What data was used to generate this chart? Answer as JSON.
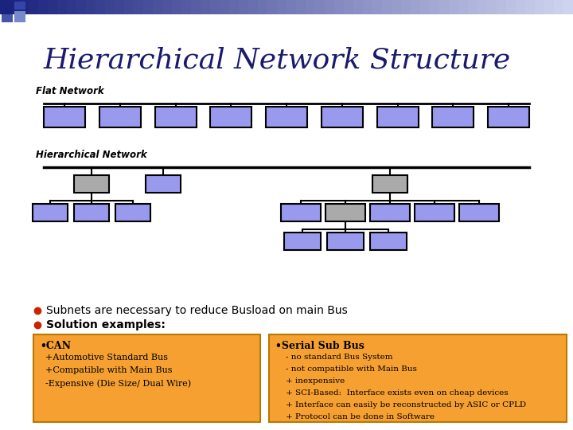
{
  "title": "Hierarchical Network Structure",
  "title_color": "#1a1a6e",
  "background_color": "#ffffff",
  "flat_network_label": "Flat Network",
  "hier_network_label": "Hierarchical Network",
  "flat_box_color": "#9999ee",
  "flat_box_edge": "#000000",
  "hier_box_blue": "#9999ee",
  "hier_box_gray": "#aaaaaa",
  "hier_box_edge": "#000000",
  "bullet_color": "#cc2200",
  "bullet1": "Subnets are necessary to reduce Busload on main Bus",
  "bullet2": "Solution examples:",
  "box_bg": "#f5a030",
  "box_edge": "#bb7700",
  "can_title": "•CAN",
  "can_lines": [
    "  +Automotive Standard Bus",
    "  +Compatible with Main Bus",
    "  -Expensive (Die Size/ Dual Wire)"
  ],
  "serial_title": "•Serial Sub Bus",
  "serial_lines": [
    "    - no standard Bus System",
    "    - not compatible with Main Bus",
    "    + inexpensive",
    "    + SCI-Based:  Interface exists even on cheap devices",
    "    + Interface can easily be reconstructed by ASIC or CPLD",
    "    + Protocol can be done in Software"
  ]
}
